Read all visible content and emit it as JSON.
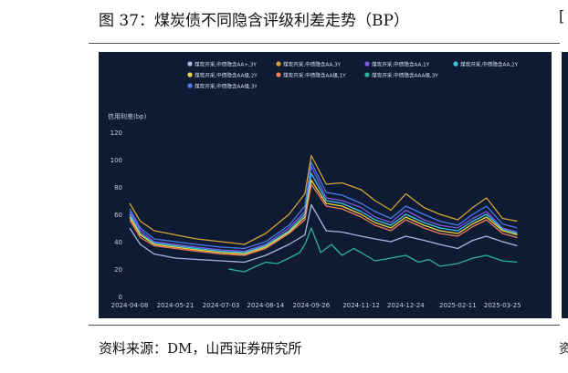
{
  "figure": {
    "title": "图 37：煤炭债不同隐含评级利差走势（BP）",
    "source": "资料来源：DM，山西证券研究所"
  },
  "chart_data": {
    "type": "line",
    "ylabel": "信用利差(bp)",
    "ylim": [
      0,
      120
    ],
    "yticks": [
      0,
      20,
      40,
      60,
      80,
      100,
      120
    ],
    "xticks": [
      "2024-04-08",
      "2024-05-21",
      "2024-07-03",
      "2024-08-14",
      "2024-09-26",
      "2024-11-12",
      "2024-12-24",
      "2025-02-11",
      "2025-03-25"
    ],
    "x_range": [
      "2024-04-08",
      "2025-04-11"
    ],
    "background": "#0f1a33",
    "legend_position": "top-right",
    "grid": false,
    "series": [
      {
        "name": "煤炭开采,中债隐含AA+,3Y",
        "color": "#a6b8e0",
        "x": [
          "2024-04-08",
          "2024-04-18",
          "2024-05-01",
          "2024-05-21",
          "2024-06-10",
          "2024-07-03",
          "2024-07-25",
          "2024-08-14",
          "2024-09-05",
          "2024-09-20",
          "2024-09-26",
          "2024-10-10",
          "2024-10-25",
          "2024-11-12",
          "2024-11-25",
          "2024-12-10",
          "2024-12-24",
          "2025-01-10",
          "2025-01-25",
          "2025-02-11",
          "2025-02-25",
          "2025-03-10",
          "2025-03-25",
          "2025-04-08"
        ],
        "values": [
          50,
          38,
          31,
          28,
          27,
          26,
          25,
          30,
          38,
          45,
          67,
          48,
          47,
          44,
          42,
          40,
          44,
          41,
          38,
          35,
          41,
          44,
          40,
          37
        ]
      },
      {
        "name": "煤炭开采,中债隐含AA,3Y",
        "color": "#d4a537",
        "x": [
          "2024-04-08",
          "2024-04-18",
          "2024-05-01",
          "2024-05-21",
          "2024-06-10",
          "2024-07-03",
          "2024-07-25",
          "2024-08-14",
          "2024-09-05",
          "2024-09-20",
          "2024-09-26",
          "2024-10-10",
          "2024-10-25",
          "2024-11-12",
          "2024-11-25",
          "2024-12-10",
          "2024-12-24",
          "2025-01-10",
          "2025-01-25",
          "2025-02-11",
          "2025-02-25",
          "2025-03-10",
          "2025-03-25",
          "2025-04-08"
        ],
        "values": [
          68,
          55,
          48,
          45,
          42,
          40,
          38,
          46,
          60,
          75,
          103,
          82,
          83,
          78,
          70,
          63,
          75,
          65,
          60,
          56,
          65,
          72,
          57,
          55
        ]
      },
      {
        "name": "煤炭开采,中债隐含AA,1Y",
        "color": "#7b5be0",
        "x": [
          "2024-04-08",
          "2024-04-18",
          "2024-05-01",
          "2024-05-21",
          "2024-06-10",
          "2024-07-03",
          "2024-07-25",
          "2024-08-14",
          "2024-09-05",
          "2024-09-20",
          "2024-09-26",
          "2024-10-10",
          "2024-10-25",
          "2024-11-12",
          "2024-11-25",
          "2024-12-10",
          "2024-12-24",
          "2025-01-10",
          "2025-01-25",
          "2025-02-11",
          "2025-02-25",
          "2025-03-10",
          "2025-03-25",
          "2025-04-08"
        ],
        "values": [
          62,
          48,
          40,
          38,
          36,
          34,
          33,
          38,
          50,
          62,
          95,
          72,
          70,
          65,
          58,
          54,
          63,
          56,
          52,
          50,
          57,
          62,
          50,
          47
        ]
      },
      {
        "name": "煤炭开采,中债隐含AA,2Y",
        "color": "#3fc6e6",
        "x": [
          "2024-04-08",
          "2024-04-18",
          "2024-05-01",
          "2024-05-21",
          "2024-06-10",
          "2024-07-03",
          "2024-07-25",
          "2024-08-14",
          "2024-09-05",
          "2024-09-20",
          "2024-09-26",
          "2024-10-10",
          "2024-10-25",
          "2024-11-12",
          "2024-11-25",
          "2024-12-10",
          "2024-12-24",
          "2025-01-10",
          "2025-01-25",
          "2025-02-11",
          "2025-02-25",
          "2025-03-10",
          "2025-03-25",
          "2025-04-08"
        ],
        "values": [
          60,
          46,
          39,
          37,
          35,
          33,
          32,
          37,
          48,
          60,
          90,
          70,
          68,
          62,
          56,
          52,
          60,
          54,
          50,
          48,
          55,
          60,
          49,
          46
        ]
      },
      {
        "name": "煤炭开采,中债隐含AA级,2Y",
        "color": "#f0d640",
        "x": [
          "2024-04-08",
          "2024-04-18",
          "2024-05-01",
          "2024-05-21",
          "2024-06-10",
          "2024-07-03",
          "2024-07-25",
          "2024-08-14",
          "2024-09-05",
          "2024-09-20",
          "2024-09-26",
          "2024-10-10",
          "2024-10-25",
          "2024-11-12",
          "2024-11-25",
          "2024-12-10",
          "2024-12-24",
          "2025-01-10",
          "2025-01-25",
          "2025-02-11",
          "2025-02-25",
          "2025-03-10",
          "2025-03-25",
          "2025-04-08"
        ],
        "values": [
          58,
          45,
          38,
          36,
          34,
          32,
          31,
          36,
          47,
          58,
          85,
          68,
          66,
          60,
          54,
          50,
          58,
          52,
          48,
          46,
          53,
          58,
          48,
          45
        ]
      },
      {
        "name": "煤炭开采,中债隐含AA级,1Y",
        "color": "#f0805a",
        "x": [
          "2024-04-08",
          "2024-04-18",
          "2024-05-01",
          "2024-05-21",
          "2024-06-10",
          "2024-07-03",
          "2024-07-25",
          "2024-08-14",
          "2024-09-05",
          "2024-09-20",
          "2024-09-26",
          "2024-10-10",
          "2024-10-25",
          "2024-11-12",
          "2024-11-25",
          "2024-12-10",
          "2024-12-24",
          "2025-01-10",
          "2025-01-25",
          "2025-02-11",
          "2025-02-25",
          "2025-03-10",
          "2025-03-25",
          "2025-04-08"
        ],
        "values": [
          56,
          43,
          37,
          35,
          33,
          31,
          30,
          35,
          46,
          56,
          82,
          66,
          64,
          58,
          52,
          48,
          56,
          50,
          46,
          44,
          51,
          56,
          46,
          43
        ]
      },
      {
        "name": "煤炭开采,中债隐含AAA级,3Y",
        "color": "#2ab39a",
        "x": [
          "2024-07-10",
          "2024-07-25",
          "2024-08-05",
          "2024-08-14",
          "2024-08-25",
          "2024-09-05",
          "2024-09-15",
          "2024-09-20",
          "2024-09-26",
          "2024-10-05",
          "2024-10-15",
          "2024-10-25",
          "2024-11-05",
          "2024-11-12",
          "2024-11-25",
          "2024-12-10",
          "2024-12-24",
          "2025-01-05",
          "2025-01-15",
          "2025-01-25",
          "2025-02-11",
          "2025-02-25",
          "2025-03-10",
          "2025-03-25",
          "2025-04-08"
        ],
        "values": [
          20,
          18,
          22,
          25,
          24,
          28,
          32,
          38,
          50,
          32,
          38,
          30,
          35,
          32,
          26,
          28,
          30,
          25,
          27,
          22,
          24,
          28,
          30,
          26,
          25
        ]
      },
      {
        "name": "煤炭开采,中债隐含AA级,3Y",
        "color": "#4a7cf0",
        "x": [
          "2024-04-08",
          "2024-04-18",
          "2024-05-01",
          "2024-05-21",
          "2024-06-10",
          "2024-07-03",
          "2024-07-25",
          "2024-08-14",
          "2024-09-05",
          "2024-09-20",
          "2024-09-26",
          "2024-10-10",
          "2024-10-25",
          "2024-11-12",
          "2024-11-25",
          "2024-12-10",
          "2024-12-24",
          "2025-01-10",
          "2025-01-25",
          "2025-02-11",
          "2025-02-25",
          "2025-03-10",
          "2025-03-25",
          "2025-04-08"
        ],
        "values": [
          64,
          50,
          42,
          40,
          38,
          36,
          35,
          40,
          52,
          66,
          98,
          76,
          74,
          68,
          62,
          57,
          66,
          60,
          55,
          52,
          60,
          66,
          53,
          50
        ]
      }
    ]
  }
}
